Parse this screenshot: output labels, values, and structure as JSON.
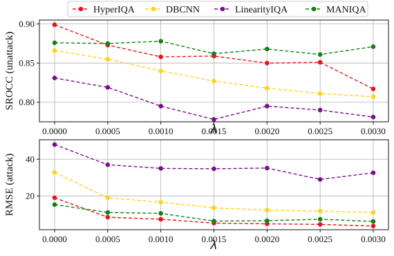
{
  "chart_data": [
    {
      "type": "line",
      "x": [
        "0.0000",
        "0.0005",
        "0.0010",
        "0.0015",
        "0.0020",
        "0.0025",
        "0.0030"
      ],
      "xlabel": "λ",
      "ylabel": "SROCC (unattack)",
      "ylim": [
        0.775,
        0.905
      ],
      "yticks": [
        "0.80",
        "0.85",
        "0.90"
      ],
      "ytick_values": [
        0.8,
        0.85,
        0.9
      ],
      "grid": true,
      "series": [
        {
          "name": "HyperIQA",
          "color": "#e8141b",
          "values": [
            0.899,
            0.873,
            0.858,
            0.859,
            0.85,
            0.851,
            0.817
          ]
        },
        {
          "name": "DBCNN",
          "color": "#ffd21f",
          "values": [
            0.866,
            0.855,
            0.84,
            0.827,
            0.818,
            0.811,
            0.807
          ]
        },
        {
          "name": "LinearityIQA",
          "color": "#7a0f8c",
          "values": [
            0.831,
            0.819,
            0.795,
            0.778,
            0.795,
            0.79,
            0.781
          ]
        },
        {
          "name": "MANIQA",
          "color": "#118214",
          "values": [
            0.876,
            0.875,
            0.878,
            0.862,
            0.868,
            0.861,
            0.871
          ]
        }
      ]
    },
    {
      "type": "line",
      "x": [
        "0.0000",
        "0.0005",
        "0.0010",
        "0.0015",
        "0.0020",
        "0.0025",
        "0.0030"
      ],
      "xlabel": "λ",
      "ylabel": "RMSE (attack)",
      "ylim": [
        1.6,
        50.6
      ],
      "yticks": [
        "20",
        "40"
      ],
      "ytick_values": [
        20,
        40
      ],
      "grid": true,
      "series": [
        {
          "name": "HyperIQA",
          "color": "#e8141b",
          "values": [
            19.0,
            8.4,
            7.3,
            5.2,
            4.8,
            4.5,
            3.6
          ]
        },
        {
          "name": "DBCNN",
          "color": "#ffd21f",
          "values": [
            32.8,
            19.0,
            16.6,
            13.5,
            12.3,
            11.7,
            11.0
          ]
        },
        {
          "name": "LinearityIQA",
          "color": "#7a0f8c",
          "values": [
            48.0,
            37.0,
            35.0,
            34.8,
            35.2,
            29.0,
            32.6
          ]
        },
        {
          "name": "MANIQA",
          "color": "#118214",
          "values": [
            15.3,
            11.0,
            10.5,
            6.3,
            6.5,
            7.3,
            6.1
          ]
        }
      ]
    }
  ],
  "legend": {
    "placement": "top",
    "entries": [
      "HyperIQA",
      "DBCNN",
      "LinearityIQA",
      "MANIQA"
    ]
  }
}
